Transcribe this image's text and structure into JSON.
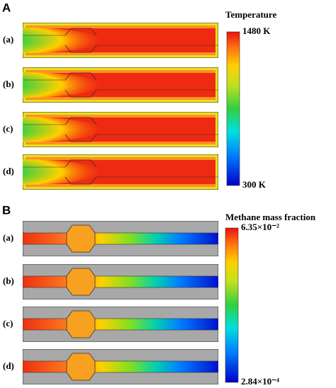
{
  "panels": [
    {
      "label": "A",
      "legend_title": "Temperature",
      "max_label": "1480 K",
      "min_label": "300 K",
      "rows": [
        "(a)",
        "(b)",
        "(c)",
        "(d)"
      ]
    },
    {
      "label": "B",
      "legend_title": "Methane mass fraction",
      "max_label": "6.35×10⁻²",
      "min_label": "2.84×10⁻⁴",
      "rows": [
        "(a)",
        "(b)",
        "(c)",
        "(d)"
      ]
    }
  ]
}
